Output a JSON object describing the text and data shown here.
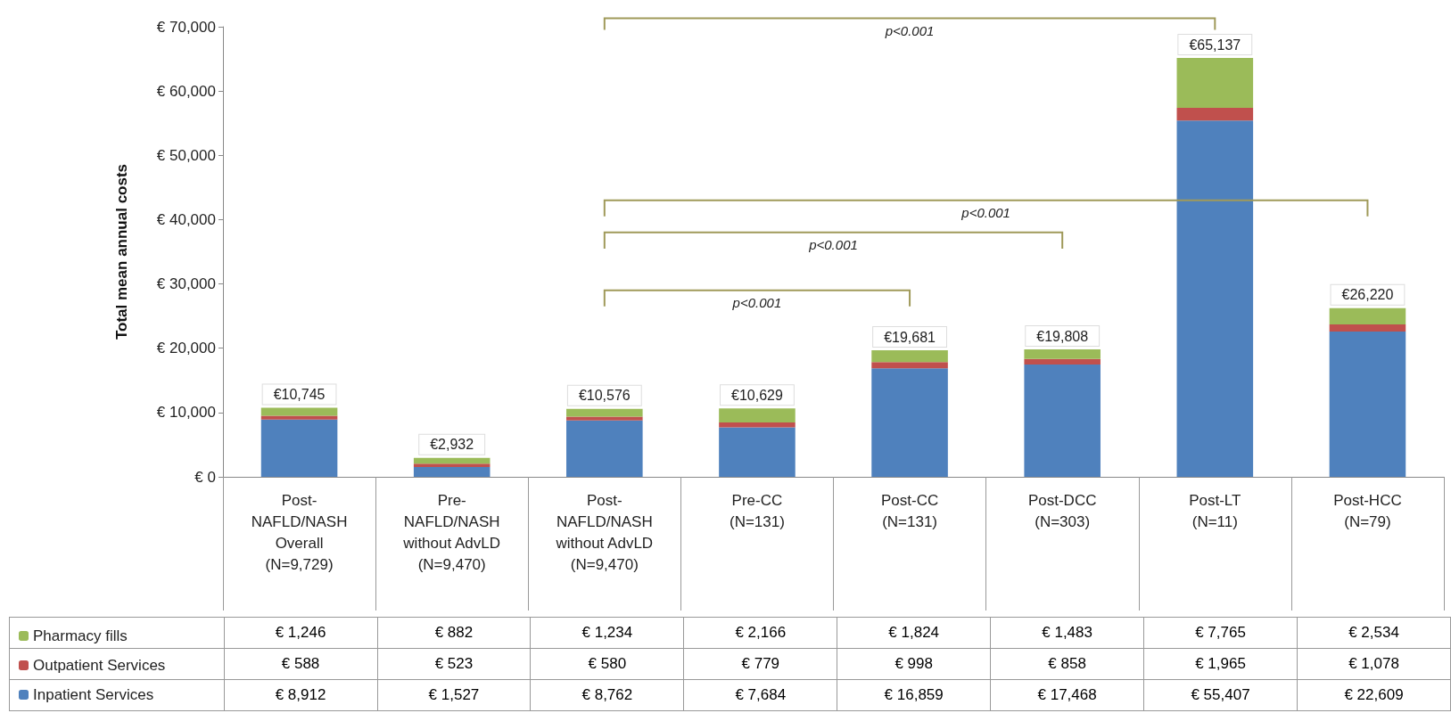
{
  "chart_data": {
    "type": "bar",
    "stacked": true,
    "ylabel": "Total mean annual costs",
    "categories": [
      "Post-\nNAFLD/NASH\nOverall\n(N=9,729)",
      "Pre-\nNAFLD/NASH\nwithout AdvLD\n(N=9,470)",
      "Post-\nNAFLD/NASH\nwithout AdvLD\n(N=9,470)",
      "Pre-CC\n(N=131)",
      "Post-CC\n(N=131)",
      "Post-DCC\n(N=303)",
      "Post-LT\n(N=11)",
      "Post-HCC\n(N=79)"
    ],
    "series": [
      {
        "name": "Inpatient Services",
        "color": "#4f81bd",
        "values": [
          8912,
          1527,
          8762,
          7684,
          16859,
          17468,
          55407,
          22609
        ],
        "value_labels": [
          "€ 8,912",
          "€ 1,527",
          "€ 8,762",
          "€ 7,684",
          "€ 16,859",
          "€ 17,468",
          "€ 55,407",
          "€ 22,609"
        ]
      },
      {
        "name": "Outpatient Services",
        "color": "#c0504d",
        "values": [
          588,
          523,
          580,
          779,
          998,
          858,
          1965,
          1078
        ],
        "value_labels": [
          "€ 588",
          "€ 523",
          "€ 580",
          "€ 779",
          "€ 998",
          "€ 858",
          "€ 1,965",
          "€ 1,078"
        ]
      },
      {
        "name": "Pharmacy fills",
        "color": "#9bbb59",
        "values": [
          1246,
          882,
          1234,
          2166,
          1824,
          1483,
          7765,
          2534
        ],
        "value_labels": [
          "€ 1,246",
          "€ 882",
          "€ 1,234",
          "€ 2,166",
          "€ 1,824",
          "€ 1,483",
          "€ 7,765",
          "€ 2,534"
        ]
      }
    ],
    "ylim": [
      0,
      70000
    ],
    "yticks": [
      {
        "value": 0,
        "label": "€ 0"
      },
      {
        "value": 10000,
        "label": "€ 10,000"
      },
      {
        "value": 20000,
        "label": "€ 20,000"
      },
      {
        "value": 30000,
        "label": "€ 30,000"
      },
      {
        "value": 40000,
        "label": "€ 40,000"
      },
      {
        "value": 50000,
        "label": "€ 50,000"
      },
      {
        "value": 60000,
        "label": "€ 60,000"
      },
      {
        "value": 70000,
        "label": "€ 70,000"
      }
    ],
    "totals": [
      "€10,745",
      "€2,932",
      "€10,576",
      "€10,629",
      "€19,681",
      "€19,808",
      "€65,137",
      "€26,220"
    ],
    "annotations": [
      "p<0.001",
      "p<0.001",
      "p<0.001",
      "p<0.001"
    ],
    "grid": false,
    "legend": "bottom left"
  }
}
